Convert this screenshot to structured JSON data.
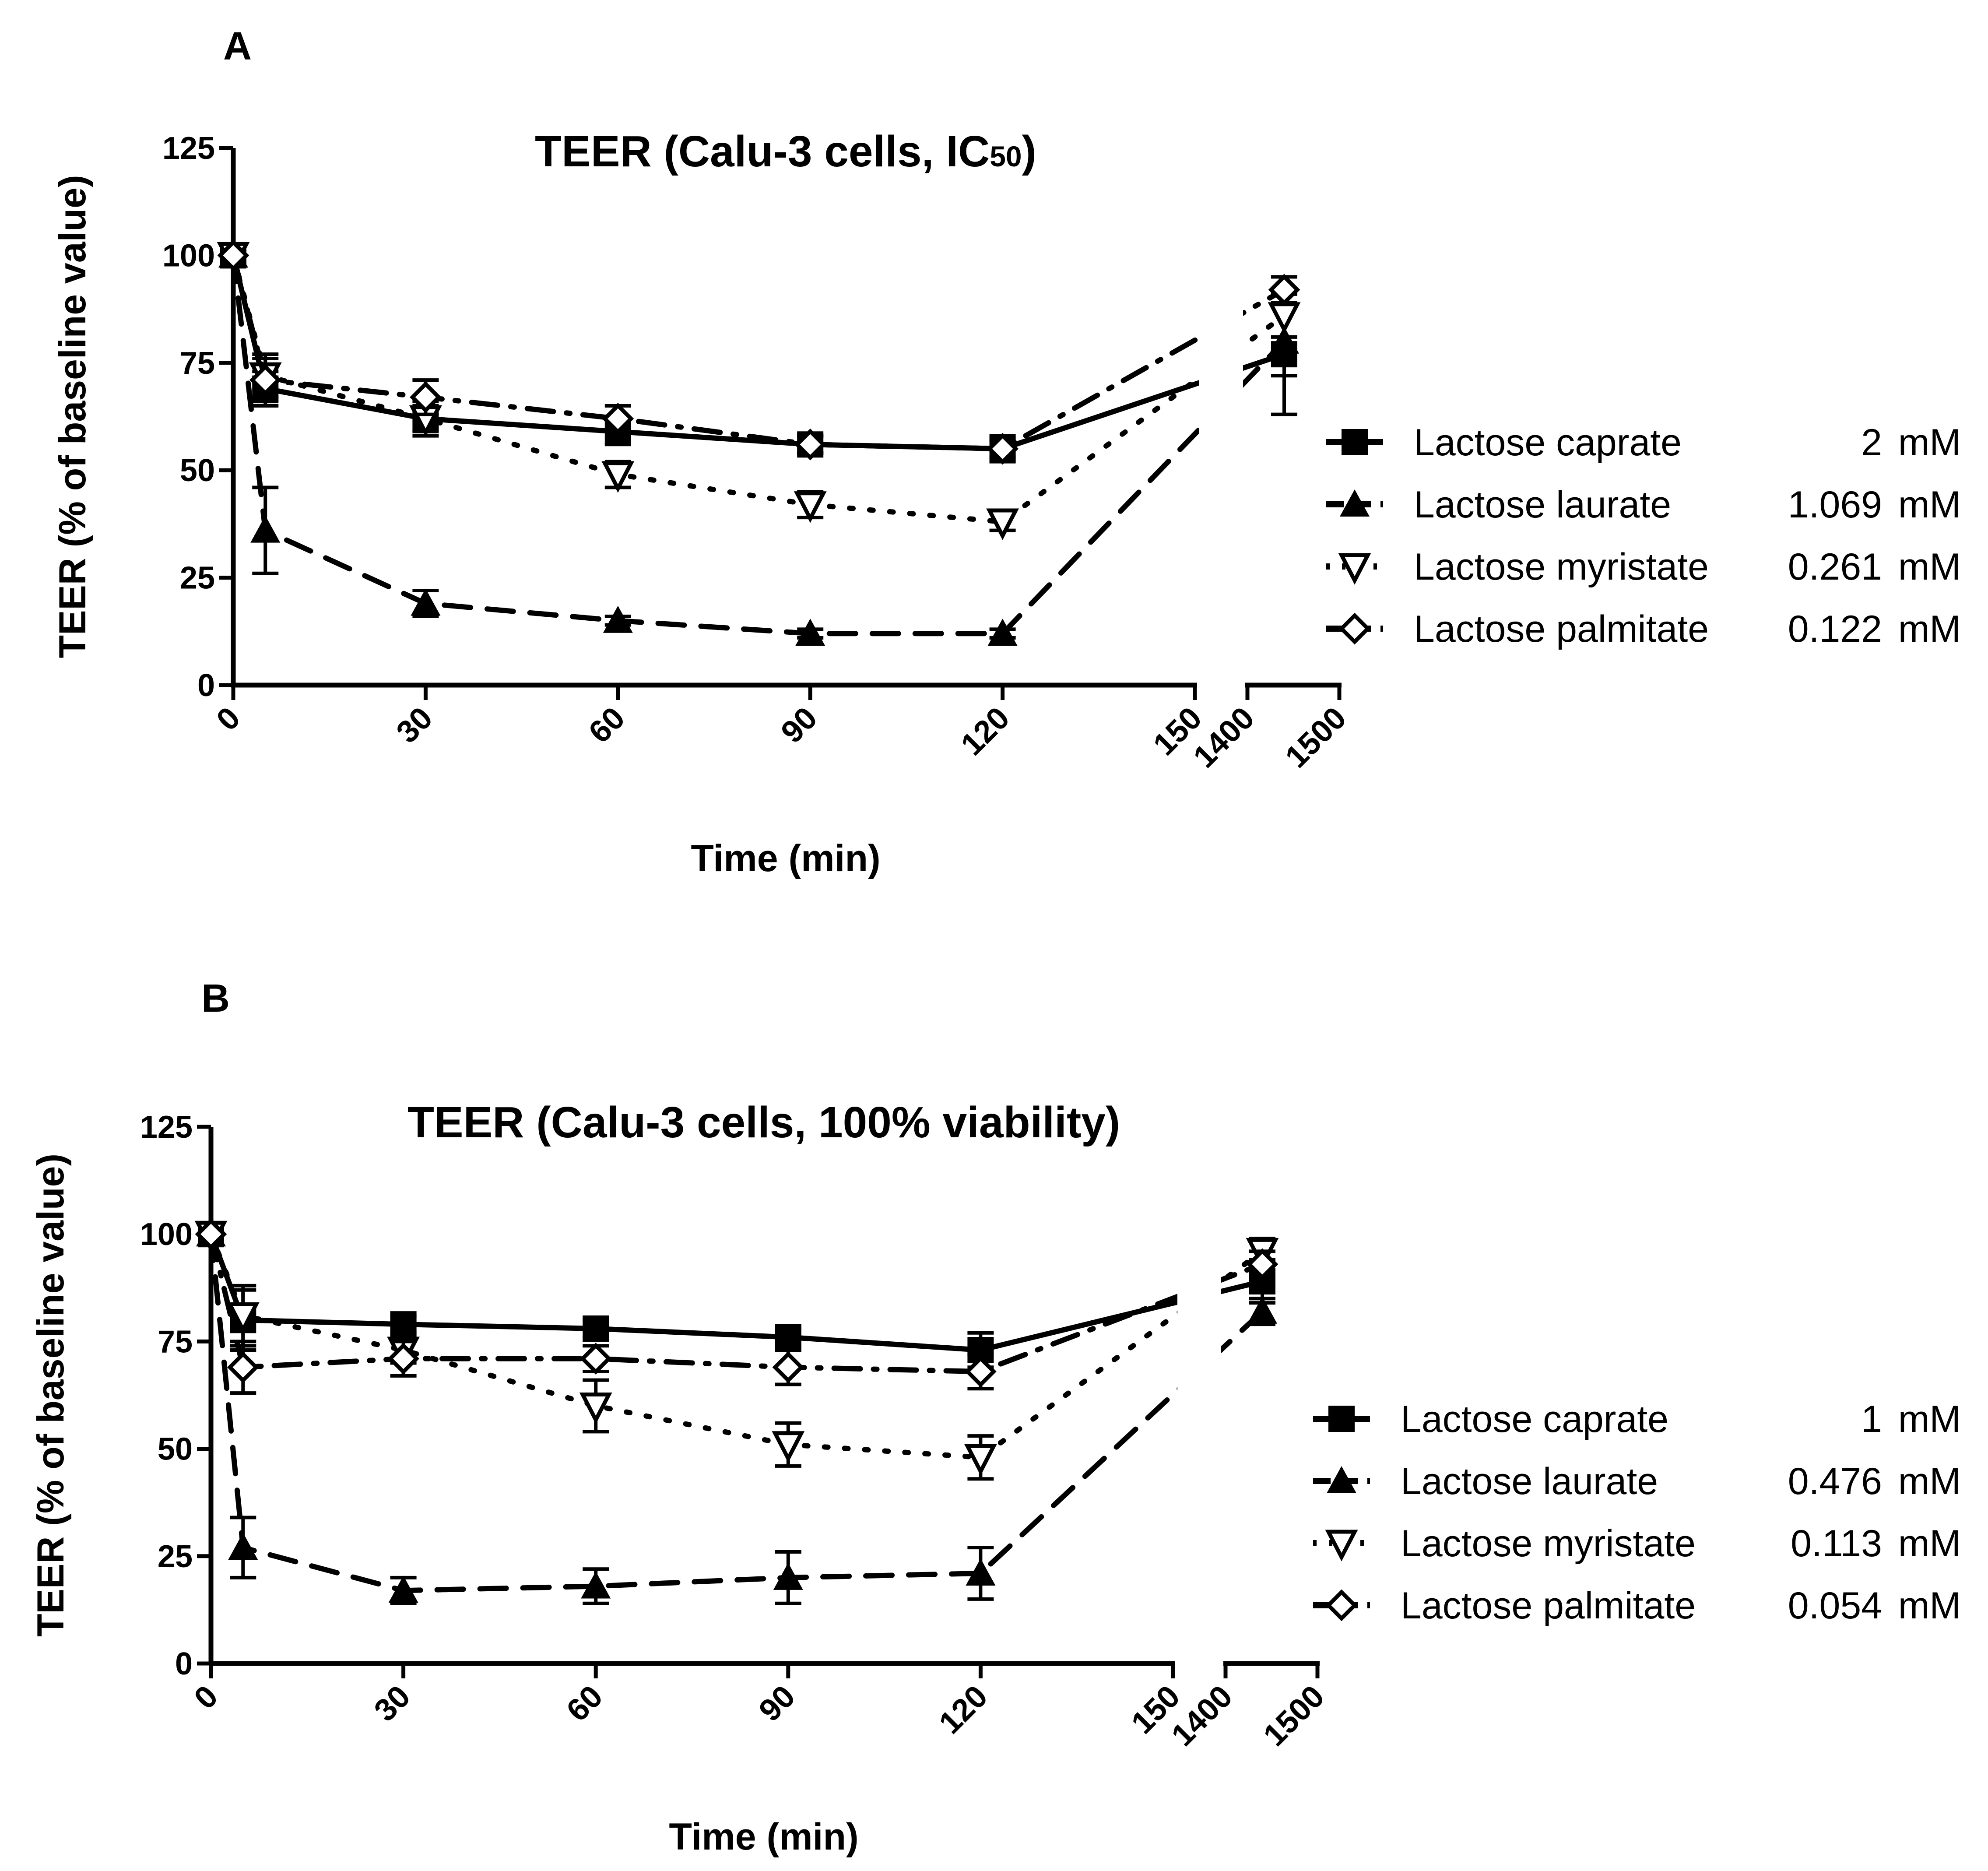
{
  "panels": [
    {
      "letter": "A"
    },
    {
      "letter": "B"
    }
  ],
  "chart_data": [
    {
      "type": "line",
      "title": "TEER (Calu-3 cells, IC",
      "title_subscript": "50",
      "title_close": ")",
      "xlabel": "Time (min)",
      "ylabel": "TEER (% of baseline value)",
      "ylim": [
        0,
        125
      ],
      "yticks": [
        0,
        25,
        50,
        75,
        100,
        125
      ],
      "xlim_segment1": [
        0,
        150
      ],
      "xlim_segment2": [
        1400,
        1500
      ],
      "xticks_segment1": [
        0,
        30,
        60,
        90,
        120,
        150
      ],
      "xticks_segment2": [
        1400,
        1500
      ],
      "x": [
        0,
        5,
        30,
        60,
        90,
        120,
        1440
      ],
      "series": [
        {
          "name": "Lactose caprate",
          "conc": "2",
          "unit": "mM",
          "marker": "square",
          "line": "solid",
          "color": "#000000",
          "values": [
            100,
            69,
            62,
            59,
            56,
            55,
            77
          ],
          "errors": [
            0,
            4,
            3,
            3,
            2,
            3,
            14
          ]
        },
        {
          "name": "Lactose laurate",
          "conc": "1.069",
          "unit": "mM",
          "marker": "triangle",
          "line": "dashed",
          "color": "#000000",
          "values": [
            100,
            36,
            19,
            15,
            12,
            12,
            80
          ],
          "errors": [
            0,
            10,
            3,
            1,
            1,
            1,
            8
          ]
        },
        {
          "name": "Lactose myristate",
          "conc": "0.261",
          "unit": "mM",
          "marker": "triangle-down-open",
          "line": "dotted",
          "color": "#000000",
          "values": [
            100,
            72,
            62,
            49,
            42,
            38,
            86
          ],
          "errors": [
            0,
            5,
            4,
            3,
            3,
            2,
            5
          ]
        },
        {
          "name": "Lactose palmitate",
          "conc": "0.122",
          "unit": "mM",
          "marker": "diamond-open",
          "line": "dashdot",
          "color": "#000000",
          "values": [
            100,
            71,
            67,
            62,
            56,
            55,
            92
          ],
          "errors": [
            0,
            5,
            4,
            3,
            2,
            2,
            3
          ]
        }
      ]
    },
    {
      "type": "line",
      "title": "TEER (Calu-3 cells, 100% viability)",
      "title_subscript": "",
      "title_close": "",
      "xlabel": "Time (min)",
      "ylabel": "TEER (% of baseline value)",
      "ylim": [
        0,
        125
      ],
      "yticks": [
        0,
        25,
        50,
        75,
        100,
        125
      ],
      "xlim_segment1": [
        0,
        150
      ],
      "xlim_segment2": [
        1400,
        1500
      ],
      "xticks_segment1": [
        0,
        30,
        60,
        90,
        120,
        150
      ],
      "xticks_segment2": [
        1400,
        1500
      ],
      "x": [
        0,
        5,
        30,
        60,
        90,
        120,
        1440
      ],
      "series": [
        {
          "name": "Lactose caprate",
          "conc": "1",
          "unit": "mM",
          "marker": "square",
          "line": "solid",
          "color": "#000000",
          "values": [
            100,
            80,
            79,
            78,
            76,
            73,
            89
          ],
          "errors": [
            0,
            7,
            2,
            2,
            2,
            4,
            5
          ]
        },
        {
          "name": "Lactose laurate",
          "conc": "0.476",
          "unit": "mM",
          "marker": "triangle",
          "line": "dashed",
          "color": "#000000",
          "values": [
            100,
            27,
            17,
            18,
            20,
            21,
            82
          ],
          "errors": [
            0,
            7,
            3,
            4,
            6,
            6,
            3
          ]
        },
        {
          "name": "Lactose myristate",
          "conc": "0.113",
          "unit": "mM",
          "marker": "triangle-down-open",
          "line": "dotted",
          "color": "#000000",
          "values": [
            100,
            81,
            73,
            60,
            51,
            48,
            96
          ],
          "errors": [
            0,
            7,
            3,
            6,
            5,
            5,
            3
          ]
        },
        {
          "name": "Lactose palmitate",
          "conc": "0.054",
          "unit": "mM",
          "marker": "diamond-open",
          "line": "dashdot",
          "color": "#000000",
          "values": [
            100,
            69,
            71,
            71,
            69,
            68,
            93
          ],
          "errors": [
            0,
            6,
            4,
            3,
            4,
            4,
            3
          ]
        }
      ]
    }
  ]
}
